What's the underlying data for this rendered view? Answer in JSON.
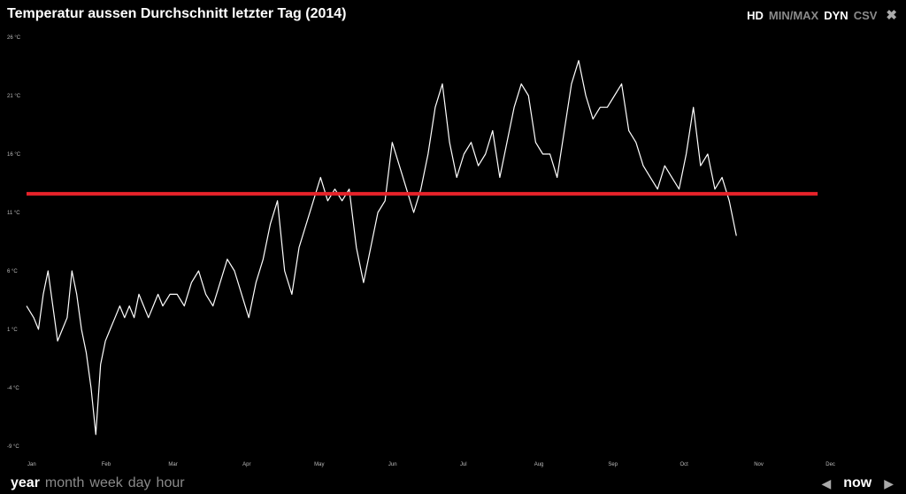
{
  "header": {
    "title": "Temperatur aussen Durchschnitt letzter Tag (2014)",
    "modes": [
      {
        "label": "HD",
        "active": true
      },
      {
        "label": "MIN/MAX",
        "active": false
      },
      {
        "label": "DYN",
        "active": true
      },
      {
        "label": "CSV",
        "active": false
      }
    ],
    "close_icon": "close-icon"
  },
  "footer": {
    "ranges": [
      "year",
      "month",
      "week",
      "day",
      "hour"
    ],
    "active_range": "year",
    "now_label": "now",
    "prev_icon": "arrow-left-icon",
    "next_icon": "arrow-right-icon"
  },
  "chart_data": {
    "type": "line",
    "title": "Temperatur aussen Durchschnitt letzter Tag (2014)",
    "x_tick_labels": [
      "Jan",
      "Feb",
      "Mar",
      "Apr",
      "May",
      "Jun",
      "Jul",
      "Aug",
      "Sep",
      "Oct",
      "Nov",
      "Dec"
    ],
    "y_tick_labels": [
      "26 °C",
      "21 °C",
      "16 °C",
      "11 °C",
      "6 °C",
      "1 °C",
      "-4 °C",
      "-9 °C"
    ],
    "y_ticks": [
      26,
      21,
      16,
      11,
      6,
      1,
      -4,
      -9
    ],
    "ylim": [
      -9,
      26
    ],
    "xlim": [
      0,
      365
    ],
    "grid": false,
    "colors": {
      "series": "#ffffff",
      "reference": "#e8232a",
      "background": "#000000"
    },
    "series": [
      {
        "x": [
          0,
          3,
          5,
          7,
          9,
          11,
          13,
          15,
          17,
          19,
          21,
          23,
          25,
          27,
          29,
          31,
          33,
          35,
          37,
          39,
          41,
          43,
          45,
          47,
          49,
          51,
          53,
          55,
          57,
          60,
          63,
          66,
          69,
          72,
          75,
          78,
          81,
          84,
          87,
          90,
          93,
          96,
          99,
          102,
          105,
          108,
          111,
          114,
          117,
          120,
          123,
          126,
          129,
          132,
          135,
          138,
          141,
          144,
          147,
          150,
          153,
          156,
          159,
          162,
          165,
          168,
          171,
          174,
          177,
          180,
          183,
          186,
          189,
          192,
          195,
          198,
          201,
          204,
          207,
          210,
          213,
          216,
          219,
          222,
          225,
          228,
          231,
          234,
          237,
          240,
          243,
          246,
          249,
          252,
          255,
          258,
          261,
          264,
          267,
          270,
          273,
          276,
          279,
          282,
          285,
          288,
          291,
          294,
          297
        ],
        "values": [
          3,
          2,
          1,
          4,
          6,
          3,
          0,
          1,
          2,
          6,
          4,
          1,
          -1,
          -4,
          -8,
          -2,
          0,
          1,
          2,
          3,
          2,
          3,
          2,
          4,
          3,
          2,
          3,
          4,
          3,
          4,
          4,
          3,
          5,
          6,
          4,
          3,
          5,
          7,
          6,
          4,
          2,
          5,
          7,
          10,
          12,
          6,
          4,
          8,
          10,
          12,
          14,
          12,
          13,
          12,
          13,
          8,
          5,
          8,
          11,
          12,
          17,
          15,
          13,
          11,
          13,
          16,
          20,
          22,
          17,
          14,
          16,
          17,
          15,
          16,
          18,
          14,
          17,
          20,
          22,
          21,
          17,
          16,
          16,
          14,
          18,
          22,
          24,
          21,
          19,
          20,
          20,
          21,
          22,
          18,
          17,
          15,
          14,
          13,
          15,
          14,
          13,
          16,
          20,
          15,
          16,
          13,
          14,
          12,
          9
        ]
      }
    ],
    "reference_line": {
      "value": 12.6,
      "x_start": 0,
      "x_end": 331
    }
  }
}
